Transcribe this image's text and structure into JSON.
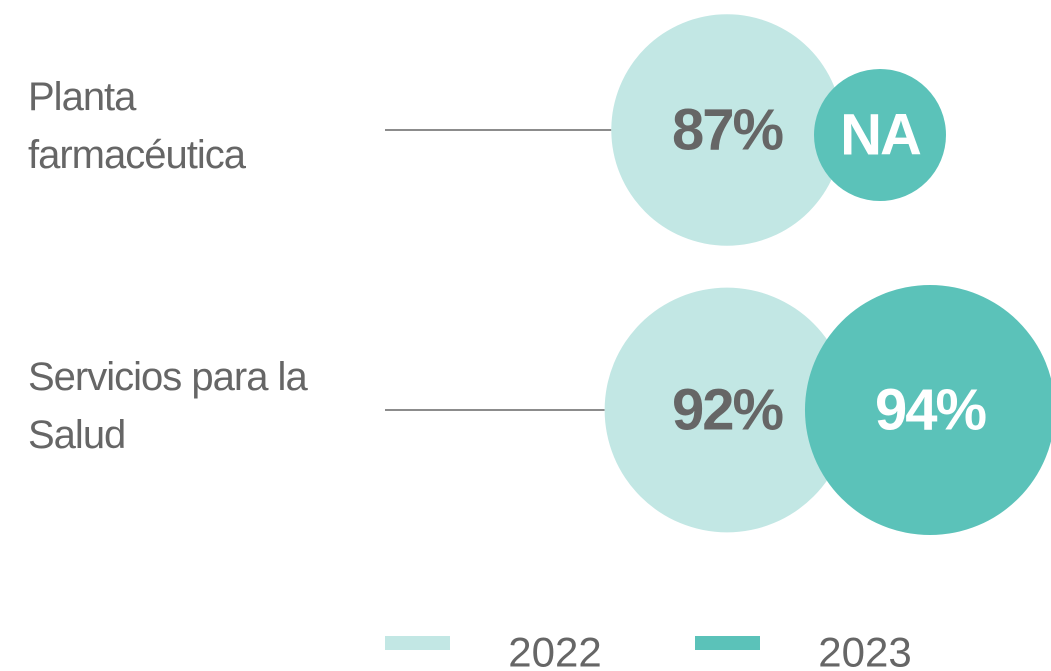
{
  "chart_data": {
    "type": "bubble",
    "categories": [
      "Planta farmacéutica",
      "Servicios para la Salud"
    ],
    "series": [
      {
        "name": "2022",
        "color": "#c2e7e4",
        "values": [
          87,
          92
        ],
        "value_labels": [
          "87%",
          "92%"
        ]
      },
      {
        "name": "2023",
        "color": "#5bc2b9",
        "values": [
          null,
          94
        ],
        "value_labels": [
          "NA",
          "94%"
        ]
      }
    ]
  }
}
